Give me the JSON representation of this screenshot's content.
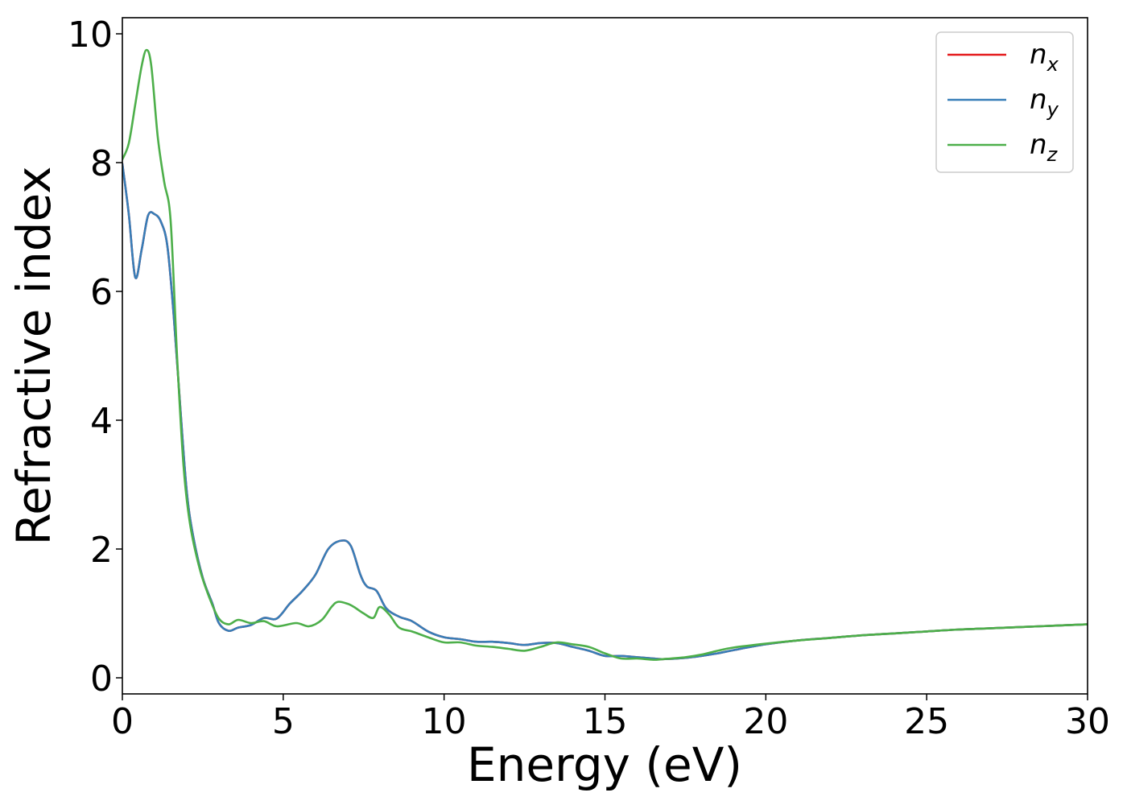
{
  "chart_data": {
    "type": "line",
    "title": "",
    "xlabel": "Energy (eV)",
    "ylabel": "Refractive index",
    "xlim": [
      0,
      30
    ],
    "ylim": [
      -0.25,
      10.25
    ],
    "xticks": [
      0,
      5,
      10,
      15,
      20,
      25,
      30
    ],
    "xtick_labels": [
      "0",
      "5",
      "10",
      "15",
      "20",
      "25",
      "30"
    ],
    "yticks": [
      0,
      2,
      4,
      6,
      8,
      10
    ],
    "ytick_labels": [
      "0",
      "2",
      "4",
      "6",
      "8",
      "10"
    ],
    "grid": false,
    "legend_position": "top-right",
    "series": [
      {
        "name": "n_x",
        "legend_base": "n",
        "legend_sub": "x",
        "color": "#e41a1c",
        "x": [
          0,
          0.2,
          0.4,
          0.6,
          0.8,
          1.0,
          1.2,
          1.4,
          1.6,
          1.8,
          2.0,
          2.2,
          2.5,
          2.8,
          3.0,
          3.3,
          3.6,
          4.0,
          4.4,
          4.8,
          5.2,
          5.6,
          6.0,
          6.4,
          6.8,
          7.1,
          7.4,
          7.6,
          7.9,
          8.2,
          8.6,
          9.0,
          9.5,
          10.0,
          10.5,
          11.0,
          11.5,
          12.0,
          12.5,
          13.0,
          13.5,
          14.0,
          14.5,
          15.0,
          15.5,
          16.0,
          16.5,
          16.8,
          17.5,
          18.0,
          18.5,
          19.0,
          20.0,
          21.0,
          22.0,
          23.0,
          24.0,
          25.0,
          26.0,
          27.0,
          28.0,
          29.0,
          30.0
        ],
        "y": [
          7.98,
          7.2,
          6.22,
          6.65,
          7.18,
          7.2,
          7.08,
          6.7,
          5.6,
          4.2,
          2.9,
          2.2,
          1.55,
          1.15,
          0.85,
          0.73,
          0.78,
          0.82,
          0.93,
          0.92,
          1.15,
          1.35,
          1.6,
          2.0,
          2.13,
          2.05,
          1.6,
          1.42,
          1.35,
          1.08,
          0.95,
          0.88,
          0.72,
          0.63,
          0.6,
          0.56,
          0.56,
          0.54,
          0.51,
          0.54,
          0.54,
          0.48,
          0.42,
          0.34,
          0.34,
          0.32,
          0.3,
          0.29,
          0.31,
          0.34,
          0.38,
          0.43,
          0.52,
          0.58,
          0.62,
          0.66,
          0.69,
          0.72,
          0.75,
          0.77,
          0.79,
          0.81,
          0.83
        ]
      },
      {
        "name": "n_y",
        "legend_base": "n",
        "legend_sub": "y",
        "color": "#377eb8",
        "x": [
          0,
          0.2,
          0.4,
          0.6,
          0.8,
          1.0,
          1.2,
          1.4,
          1.6,
          1.8,
          2.0,
          2.2,
          2.5,
          2.8,
          3.0,
          3.3,
          3.6,
          4.0,
          4.4,
          4.8,
          5.2,
          5.6,
          6.0,
          6.4,
          6.8,
          7.1,
          7.4,
          7.6,
          7.9,
          8.2,
          8.6,
          9.0,
          9.5,
          10.0,
          10.5,
          11.0,
          11.5,
          12.0,
          12.5,
          13.0,
          13.5,
          14.0,
          14.5,
          15.0,
          15.5,
          16.0,
          16.5,
          16.8,
          17.5,
          18.0,
          18.5,
          19.0,
          20.0,
          21.0,
          22.0,
          23.0,
          24.0,
          25.0,
          26.0,
          27.0,
          28.0,
          29.0,
          30.0
        ],
        "y": [
          7.98,
          7.2,
          6.22,
          6.65,
          7.18,
          7.2,
          7.08,
          6.7,
          5.6,
          4.2,
          2.9,
          2.2,
          1.55,
          1.15,
          0.85,
          0.73,
          0.78,
          0.82,
          0.93,
          0.92,
          1.15,
          1.35,
          1.6,
          2.0,
          2.13,
          2.05,
          1.6,
          1.42,
          1.35,
          1.08,
          0.95,
          0.88,
          0.72,
          0.63,
          0.6,
          0.56,
          0.56,
          0.54,
          0.51,
          0.54,
          0.54,
          0.48,
          0.42,
          0.34,
          0.34,
          0.32,
          0.3,
          0.29,
          0.31,
          0.34,
          0.38,
          0.43,
          0.52,
          0.58,
          0.62,
          0.66,
          0.69,
          0.72,
          0.75,
          0.77,
          0.79,
          0.81,
          0.83
        ]
      },
      {
        "name": "n_z",
        "legend_base": "n",
        "legend_sub": "z",
        "color": "#4daf4a",
        "x": [
          0,
          0.2,
          0.4,
          0.6,
          0.75,
          0.9,
          1.1,
          1.3,
          1.5,
          1.7,
          1.9,
          2.1,
          2.4,
          2.7,
          3.0,
          3.3,
          3.6,
          4.0,
          4.4,
          4.8,
          5.4,
          5.8,
          6.2,
          6.5,
          6.7,
          7.0,
          7.2,
          7.5,
          7.8,
          8.0,
          8.3,
          8.6,
          9.0,
          9.5,
          10.0,
          10.5,
          11.0,
          11.5,
          12.0,
          12.5,
          13.0,
          13.5,
          14.0,
          14.5,
          15.0,
          15.5,
          16.0,
          16.5,
          16.8,
          17.5,
          18.0,
          18.5,
          19.0,
          20.0,
          21.0,
          22.0,
          23.0,
          24.0,
          25.0,
          26.0,
          27.0,
          28.0,
          29.0,
          30.0
        ],
        "y": [
          8.05,
          8.3,
          8.9,
          9.5,
          9.75,
          9.5,
          8.4,
          7.7,
          7.1,
          5.0,
          3.3,
          2.4,
          1.7,
          1.25,
          0.92,
          0.83,
          0.9,
          0.85,
          0.88,
          0.8,
          0.85,
          0.8,
          0.9,
          1.1,
          1.18,
          1.15,
          1.1,
          1.0,
          0.93,
          1.1,
          0.98,
          0.78,
          0.72,
          0.63,
          0.55,
          0.55,
          0.5,
          0.48,
          0.45,
          0.42,
          0.48,
          0.55,
          0.52,
          0.48,
          0.38,
          0.3,
          0.3,
          0.28,
          0.29,
          0.32,
          0.36,
          0.42,
          0.47,
          0.53,
          0.58,
          0.62,
          0.66,
          0.69,
          0.72,
          0.75,
          0.77,
          0.79,
          0.81,
          0.83
        ]
      }
    ]
  }
}
